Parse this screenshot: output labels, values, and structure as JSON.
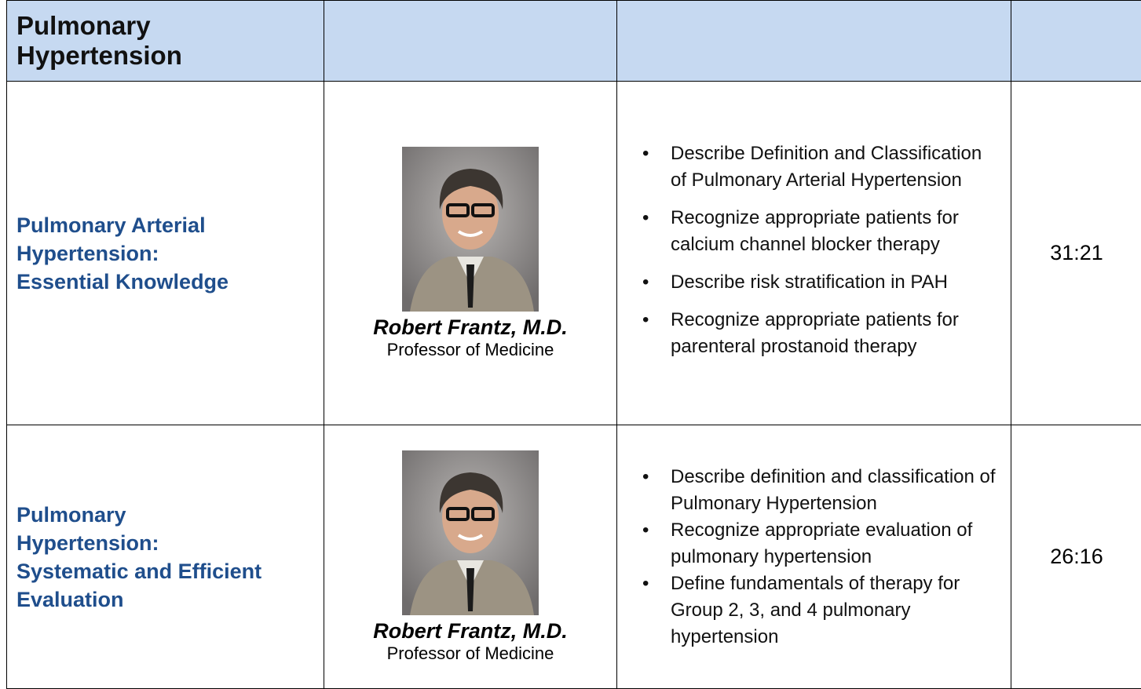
{
  "table": {
    "header": {
      "title": "Pulmonary Hypertension"
    },
    "rows": [
      {
        "title_lines": [
          "Pulmonary Arterial",
          "Hypertension:",
          "Essential Knowledge"
        ],
        "speaker": {
          "name": "Robert Frantz, M.D.",
          "role": "Professor of Medicine"
        },
        "objectives": [
          "Describe Definition and Classification of Pulmonary Arterial Hypertension",
          "Recognize appropriate patients for calcium channel blocker therapy",
          "Describe risk stratification in PAH",
          "Recognize appropriate patients for parenteral prostanoid therapy"
        ],
        "duration": "31:21"
      },
      {
        "title_lines": [
          "Pulmonary",
          "Hypertension:",
          "Systematic and Efficient",
          "Evaluation"
        ],
        "speaker": {
          "name": "Robert Frantz, M.D.",
          "role": "Professor of Medicine"
        },
        "objectives": [
          "Describe definition and classification of Pulmonary Hypertension",
          "Recognize appropriate evaluation of pulmonary hypertension",
          "Define fundamentals of therapy for Group 2, 3, and 4 pulmonary hypertension"
        ],
        "duration": "26:16"
      }
    ]
  }
}
